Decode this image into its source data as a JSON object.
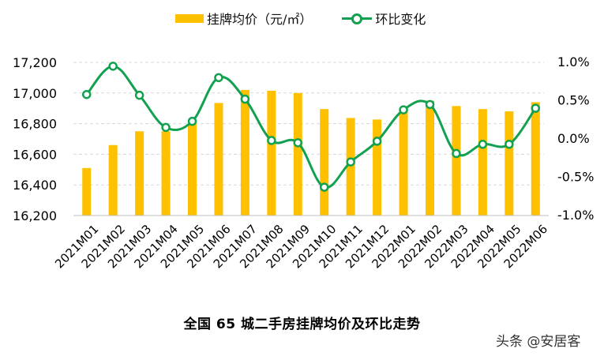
{
  "legend": {
    "bar_label": "挂牌均价（元/㎡）",
    "line_label": "环比变化"
  },
  "title": "全国 65 城二手房挂牌均价及环比走势",
  "watermark": "头条 @安居客",
  "colors": {
    "bar": "#FFC000",
    "line": "#12A150",
    "grid": "#D9D9D9",
    "axis": "#BFBFBF",
    "text": "#000000"
  },
  "chart_data": {
    "type": "bar+line",
    "title": "全国 65 城二手房挂牌均价及环比走势",
    "xlabel": "",
    "ylabel_left": "挂牌均价（元/㎡）",
    "ylabel_right": "环比变化",
    "categories": [
      "2021M01",
      "2021M02",
      "2021M03",
      "2021M04",
      "2021M05",
      "2021M06",
      "2021M07",
      "2021M08",
      "2021M09",
      "2021M10",
      "2021M11",
      "2021M12",
      "2022M01",
      "2022M02",
      "2022M03",
      "2022M04",
      "2022M05",
      "2022M06"
    ],
    "series": [
      {
        "name": "挂牌均价（元/㎡）",
        "type": "bar",
        "axis": "left",
        "values": [
          16510,
          16660,
          16750,
          16750,
          16800,
          16935,
          17020,
          17015,
          17000,
          16895,
          16837,
          16827,
          16880,
          16950,
          16915,
          16895,
          16880,
          16940
        ]
      },
      {
        "name": "环比变化",
        "type": "line",
        "axis": "right",
        "unit": "%",
        "values": [
          0.57,
          0.94,
          0.56,
          0.14,
          0.22,
          0.79,
          0.51,
          -0.03,
          -0.06,
          -0.64,
          -0.31,
          -0.04,
          0.37,
          0.44,
          -0.2,
          -0.08,
          -0.08,
          0.39
        ]
      }
    ],
    "left_axis": {
      "ylim": [
        16200,
        17200
      ],
      "ticks": [
        17200,
        17000,
        16800,
        16600,
        16400,
        16200
      ],
      "tick_labels": [
        "17,200",
        "17,000",
        "16,800",
        "16,600",
        "16,400",
        "16,200"
      ]
    },
    "right_axis": {
      "ylim": [
        -1.0,
        1.0
      ],
      "ticks": [
        1.0,
        0.5,
        0.0,
        -0.5,
        -1.0
      ],
      "tick_labels": [
        "1.0%",
        "0.5%",
        "0.0%",
        "-0.5%",
        "-1.0%"
      ]
    },
    "grid": true,
    "legend_position": "top"
  }
}
